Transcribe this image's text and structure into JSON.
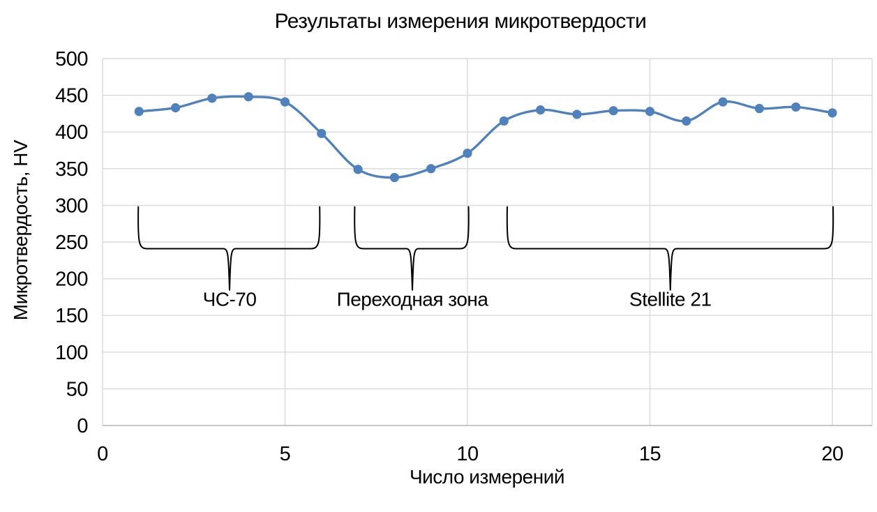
{
  "chart_data": {
    "type": "line",
    "title": "Результаты измерения микротвердости",
    "xlabel": "Число измерений",
    "ylabel": "Микротвердость, HV",
    "x": [
      1,
      2,
      3,
      4,
      5,
      6,
      7,
      8,
      9,
      10,
      11,
      12,
      13,
      14,
      15,
      16,
      17,
      18,
      19,
      20
    ],
    "values": [
      428,
      433,
      446,
      448,
      441,
      398,
      349,
      338,
      350,
      371,
      415,
      430,
      424,
      429,
      428,
      415,
      441,
      432,
      434,
      426
    ],
    "series_name": "Микротвердость, HV",
    "xlim": [
      0,
      21.1
    ],
    "ylim": [
      0,
      500
    ],
    "xticks": [
      0,
      5,
      10,
      15,
      20
    ],
    "ytick_step": 50,
    "grid": true,
    "legend": "none",
    "smooth": true,
    "line_color": "#4F81BD",
    "marker_color": "#4F81BD",
    "gridline_color": "#D9D9D9",
    "axisline_color": "#BFBFBF",
    "annotation_color": "#000000",
    "annotations": [
      {
        "label": "ЧС-70",
        "x_start": 0.98,
        "x_end": 5.95,
        "tip_x": 3.48,
        "brace_top_y": 298,
        "brace_bar_y": 241,
        "brace_tip_y": 184,
        "label_y": 163
      },
      {
        "label": "Переходная зона",
        "x_start": 6.91,
        "x_end": 10.03,
        "tip_x": 8.49,
        "brace_top_y": 298,
        "brace_bar_y": 241,
        "brace_tip_y": 184,
        "label_y": 163
      },
      {
        "label": "Stellite 21",
        "x_start": 11.09,
        "x_end": 20.02,
        "tip_x": 15.56,
        "brace_top_y": 298,
        "brace_bar_y": 241,
        "brace_tip_y": 184,
        "label_y": 163
      }
    ]
  }
}
